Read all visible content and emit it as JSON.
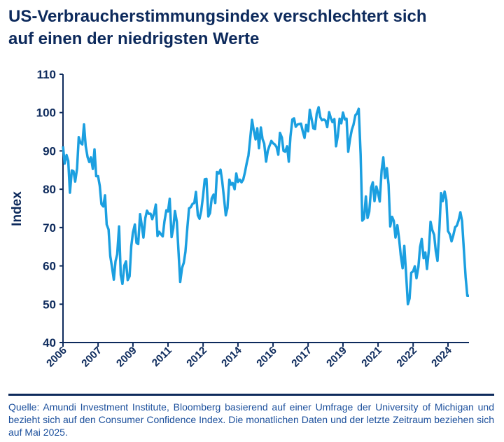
{
  "chart_data": {
    "type": "line",
    "title": [
      "US-Verbraucherstimmungsindex verschlechtert sich",
      "auf einen der niedrigsten Werte"
    ],
    "ylabel": "Index",
    "source": "Quelle: Amundi Investment Institute, Bloomberg basierend auf einer Umfrage der University of Michigan und bezieht sich auf den Consumer Confidence Index. Die monatlichen Daten und der letzte Zeitraum beziehen sich auf Mai 2025.",
    "xlim": [
      2006,
      2025.33
    ],
    "xticks": [
      2006,
      {
        "value": 2007.67,
        "label": "2007"
      },
      {
        "value": 2009.33,
        "label": "2009"
      },
      2011,
      {
        "value": 2012.67,
        "label": "2012"
      },
      {
        "value": 2014.33,
        "label": "2014"
      },
      2016,
      {
        "value": 2017.67,
        "label": "2017"
      },
      {
        "value": 2019.33,
        "label": "2019"
      },
      2021,
      {
        "value": 2022.67,
        "label": "2022"
      },
      {
        "value": 2024.33,
        "label": "2024"
      }
    ],
    "ylim": [
      40,
      110
    ],
    "yticks": [
      40,
      50,
      60,
      70,
      80,
      90,
      100,
      110
    ],
    "x": [
      2006,
      2006.08,
      2006.17,
      2006.25,
      2006.33,
      2006.42,
      2006.5,
      2006.58,
      2006.67,
      2006.75,
      2006.83,
      2006.92,
      2007,
      2007.08,
      2007.17,
      2007.25,
      2007.33,
      2007.42,
      2007.5,
      2007.58,
      2007.67,
      2007.75,
      2007.83,
      2007.92,
      2008,
      2008.08,
      2008.17,
      2008.25,
      2008.33,
      2008.42,
      2008.5,
      2008.58,
      2008.67,
      2008.75,
      2008.83,
      2008.92,
      2009,
      2009.08,
      2009.17,
      2009.25,
      2009.33,
      2009.42,
      2009.5,
      2009.58,
      2009.67,
      2009.75,
      2009.83,
      2009.92,
      2010,
      2010.08,
      2010.17,
      2010.25,
      2010.33,
      2010.42,
      2010.5,
      2010.58,
      2010.67,
      2010.75,
      2010.83,
      2010.92,
      2011,
      2011.08,
      2011.17,
      2011.25,
      2011.33,
      2011.42,
      2011.5,
      2011.58,
      2011.67,
      2011.75,
      2011.83,
      2011.92,
      2012,
      2012.08,
      2012.17,
      2012.25,
      2012.33,
      2012.42,
      2012.5,
      2012.58,
      2012.67,
      2012.75,
      2012.83,
      2012.92,
      2013,
      2013.08,
      2013.17,
      2013.25,
      2013.33,
      2013.42,
      2013.5,
      2013.58,
      2013.67,
      2013.75,
      2013.83,
      2013.92,
      2014,
      2014.08,
      2014.17,
      2014.25,
      2014.33,
      2014.42,
      2014.5,
      2014.58,
      2014.67,
      2014.75,
      2014.83,
      2014.92,
      2015,
      2015.08,
      2015.17,
      2015.25,
      2015.33,
      2015.42,
      2015.5,
      2015.58,
      2015.67,
      2015.75,
      2015.83,
      2015.92,
      2016,
      2016.08,
      2016.17,
      2016.25,
      2016.33,
      2016.42,
      2016.5,
      2016.58,
      2016.67,
      2016.75,
      2016.83,
      2016.92,
      2017,
      2017.08,
      2017.17,
      2017.25,
      2017.33,
      2017.42,
      2017.5,
      2017.58,
      2017.67,
      2017.75,
      2017.83,
      2017.92,
      2018,
      2018.08,
      2018.17,
      2018.25,
      2018.33,
      2018.42,
      2018.5,
      2018.58,
      2018.67,
      2018.75,
      2018.83,
      2018.92,
      2019,
      2019.08,
      2019.17,
      2019.25,
      2019.33,
      2019.42,
      2019.5,
      2019.58,
      2019.67,
      2019.75,
      2019.83,
      2019.92,
      2020,
      2020.08,
      2020.17,
      2020.25,
      2020.33,
      2020.42,
      2020.5,
      2020.58,
      2020.67,
      2020.75,
      2020.83,
      2020.92,
      2021,
      2021.08,
      2021.17,
      2021.25,
      2021.33,
      2021.42,
      2021.5,
      2021.58,
      2021.67,
      2021.75,
      2021.83,
      2021.92,
      2022,
      2022.08,
      2022.17,
      2022.25,
      2022.33,
      2022.42,
      2022.5,
      2022.58,
      2022.67,
      2022.75,
      2022.83,
      2022.92,
      2023,
      2023.08,
      2023.17,
      2023.25,
      2023.33,
      2023.42,
      2023.5,
      2023.58,
      2023.67,
      2023.75,
      2023.83,
      2023.92,
      2024,
      2024.08,
      2024.17,
      2024.25,
      2024.33,
      2024.42,
      2024.5,
      2024.58,
      2024.67,
      2024.75,
      2024.83,
      2024.92,
      2025,
      2025.08,
      2025.17,
      2025.25,
      2025.33
    ],
    "series": [
      {
        "color": "#1b9fe0",
        "values": [
          91.2,
          86.7,
          88.9,
          87.4,
          79.1,
          84.9,
          84.7,
          82.0,
          85.4,
          93.6,
          92.1,
          91.7,
          96.9,
          91.3,
          88.4,
          87.1,
          88.3,
          85.3,
          90.4,
          83.4,
          83.4,
          80.9,
          76.1,
          75.5,
          78.4,
          70.8,
          69.5,
          62.6,
          59.8,
          56.4,
          61.2,
          63.0,
          70.3,
          57.6,
          55.3,
          60.1,
          61.2,
          56.3,
          57.3,
          65.1,
          68.7,
          70.8,
          66.0,
          65.7,
          73.5,
          70.6,
          67.4,
          72.5,
          74.4,
          73.6,
          73.6,
          72.2,
          73.6,
          76.0,
          67.8,
          68.9,
          68.2,
          67.7,
          71.6,
          74.5,
          74.2,
          77.5,
          67.5,
          69.8,
          74.3,
          71.5,
          63.7,
          55.8,
          59.5,
          60.8,
          63.7,
          69.9,
          75.0,
          75.3,
          76.2,
          76.4,
          79.3,
          73.2,
          72.3,
          74.3,
          78.3,
          82.6,
          82.7,
          72.9,
          73.8,
          77.6,
          78.6,
          76.4,
          84.5,
          84.1,
          85.1,
          82.1,
          77.5,
          73.2,
          75.1,
          82.5,
          81.2,
          81.6,
          80.0,
          84.1,
          81.9,
          82.5,
          81.8,
          82.5,
          84.6,
          86.9,
          88.8,
          93.6,
          98.1,
          95.4,
          93.0,
          95.9,
          90.7,
          96.1,
          93.1,
          91.9,
          87.2,
          90.0,
          91.3,
          92.6,
          92.0,
          91.7,
          91.0,
          89.0,
          94.7,
          93.5,
          90.0,
          89.8,
          91.2,
          87.2,
          93.8,
          98.2,
          98.5,
          96.3,
          96.9,
          97.0,
          97.1,
          95.0,
          93.4,
          96.8,
          95.1,
          100.7,
          98.5,
          95.9,
          95.7,
          99.7,
          101.4,
          98.8,
          98.0,
          98.2,
          97.9,
          96.2,
          100.1,
          98.6,
          97.5,
          98.3,
          91.2,
          93.8,
          98.4,
          97.2,
          100.0,
          98.2,
          98.4,
          89.8,
          93.2,
          95.5,
          96.8,
          99.3,
          99.8,
          101.0,
          89.1,
          71.8,
          72.3,
          78.1,
          72.5,
          74.1,
          80.4,
          81.8,
          76.9,
          80.7,
          79.0,
          76.8,
          84.9,
          88.3,
          82.9,
          85.5,
          81.2,
          70.3,
          72.8,
          71.7,
          67.4,
          70.6,
          67.2,
          62.8,
          59.4,
          65.2,
          58.4,
          50.0,
          51.5,
          58.2,
          58.6,
          59.9,
          56.8,
          59.7,
          64.9,
          67.0,
          62.0,
          63.5,
          59.2,
          64.2,
          71.5,
          69.4,
          68.1,
          63.8,
          61.3,
          69.7,
          79.0,
          76.9,
          79.4,
          77.2,
          69.1,
          68.2,
          66.4,
          67.9,
          70.1,
          70.5,
          71.8,
          74.0,
          71.7,
          64.7,
          57.0,
          52.2,
          52.2
        ]
      }
    ]
  }
}
